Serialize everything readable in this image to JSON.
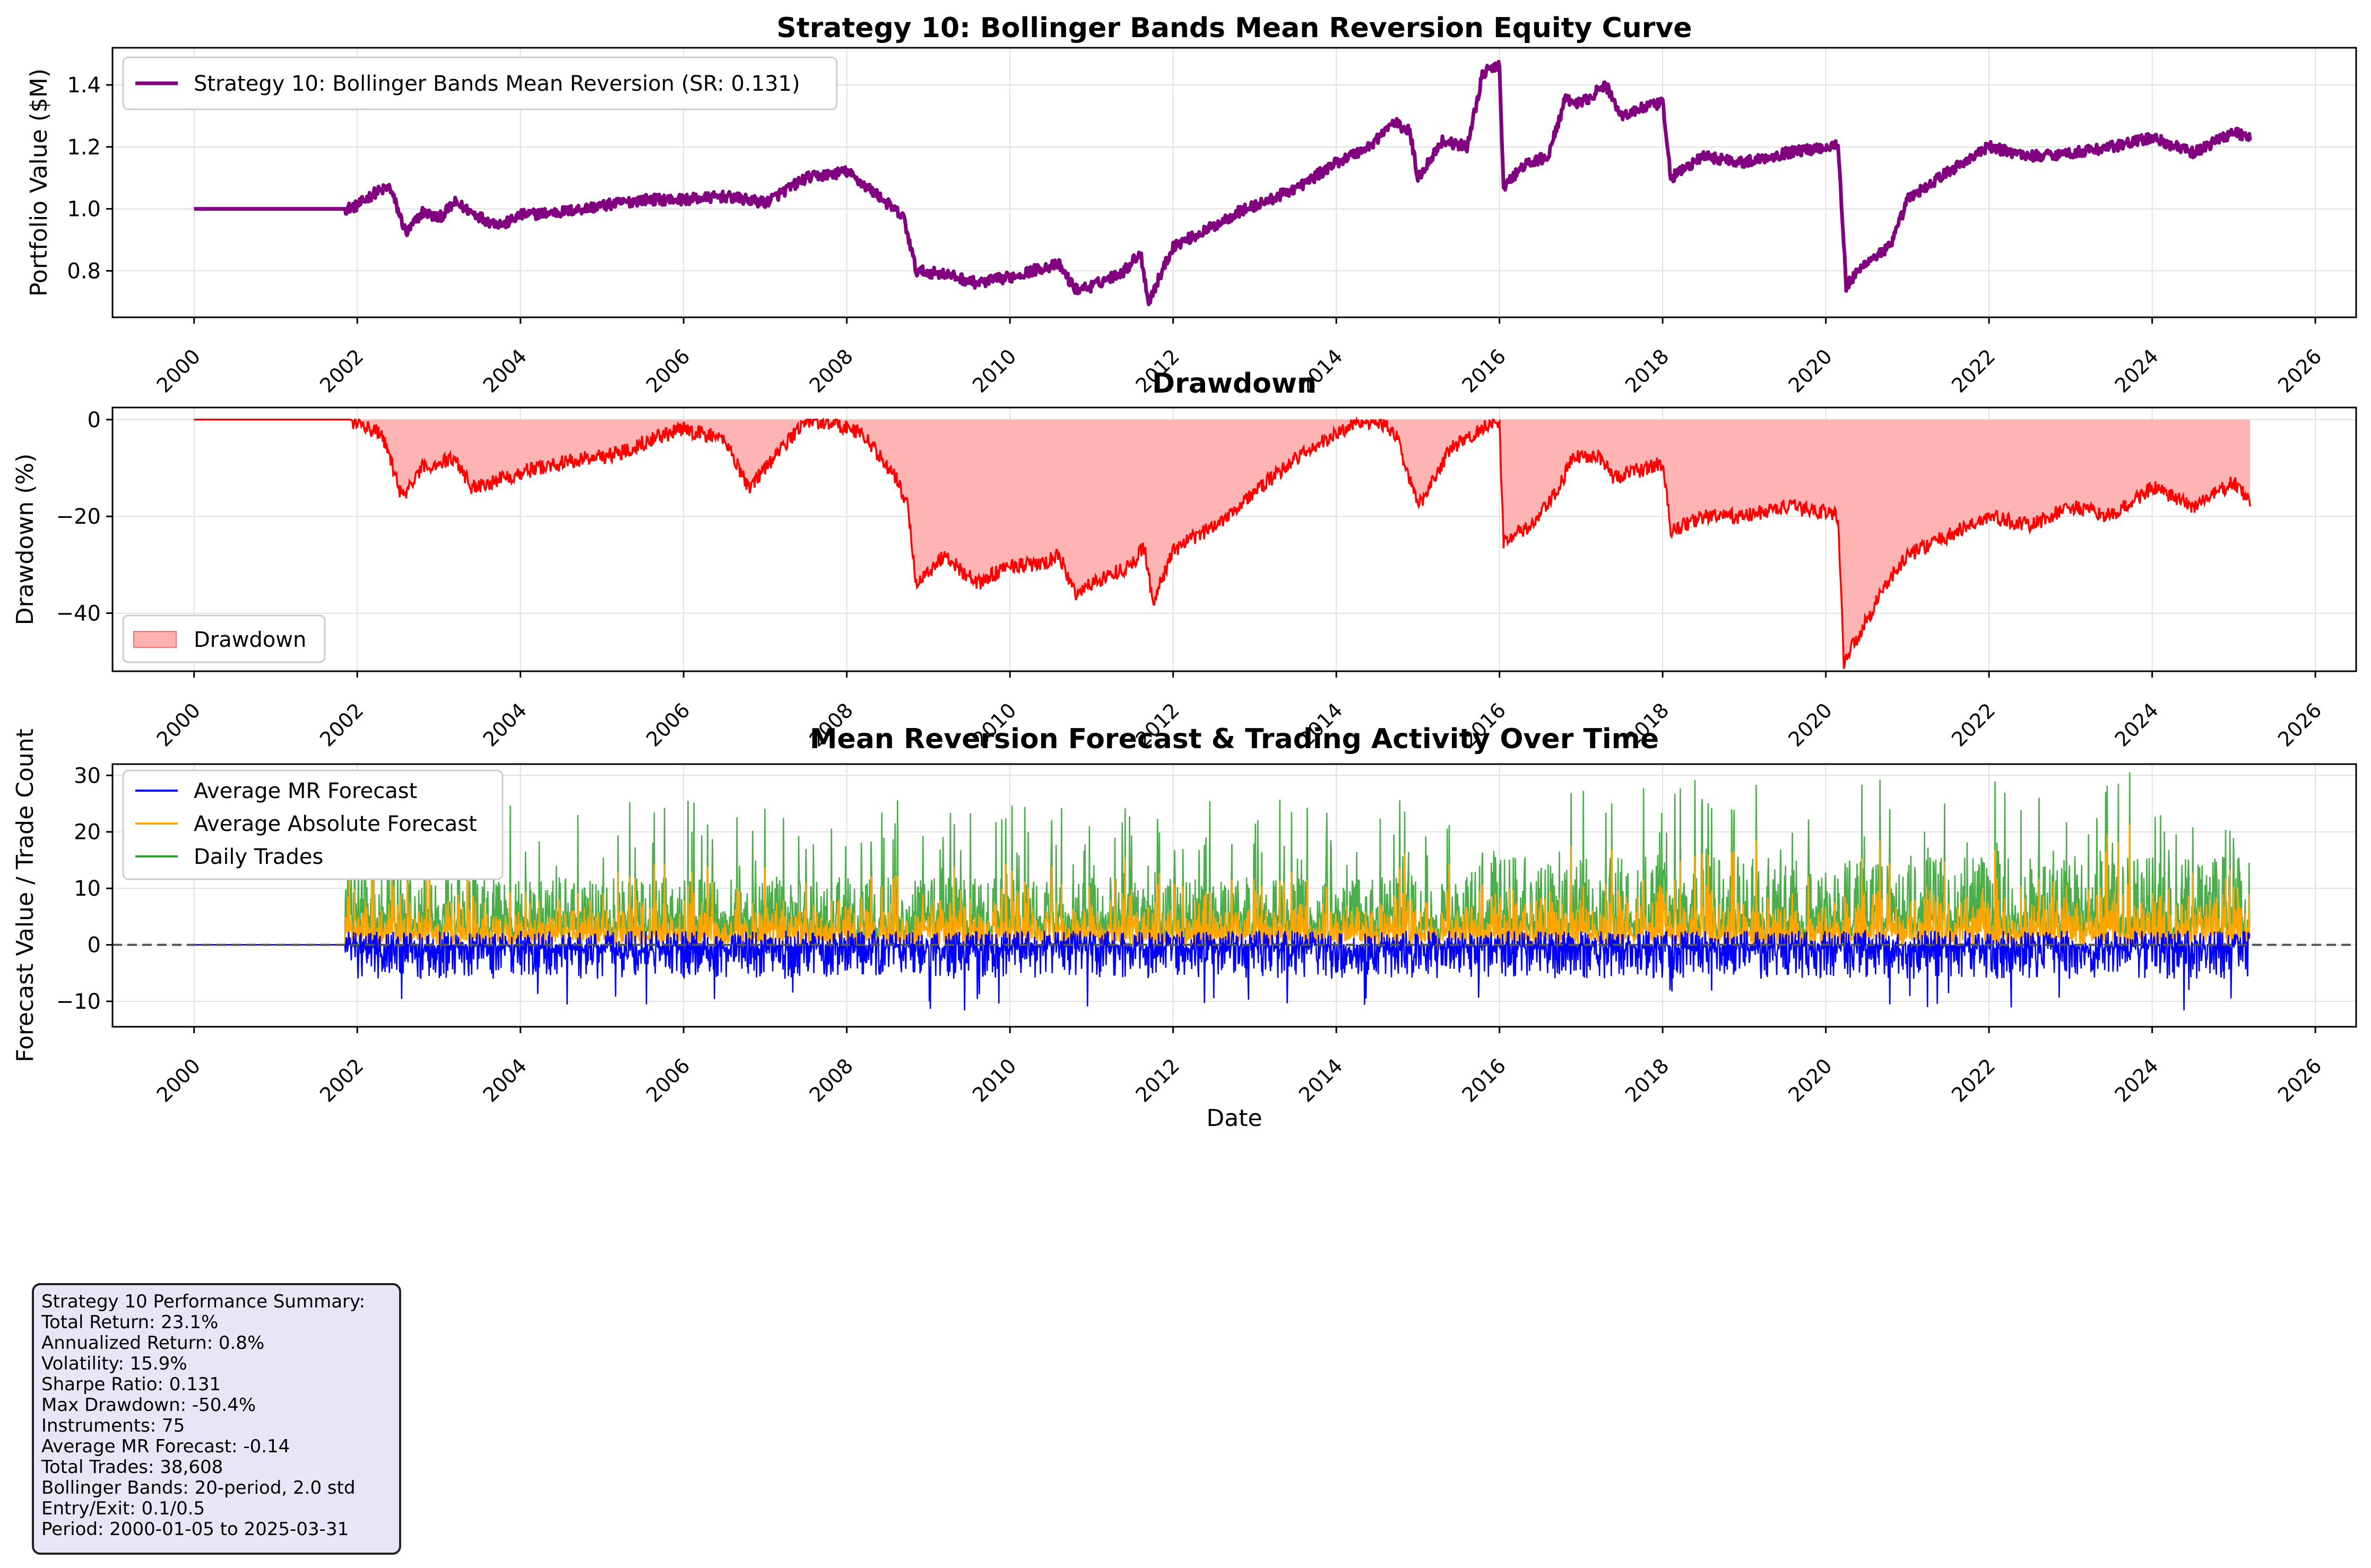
{
  "chart_data": [
    {
      "type": "line",
      "title": "Strategy 10: Bollinger Bands Mean Reversion Equity Curve",
      "xlabel": "",
      "ylabel": "Portfolio Value ($M)",
      "xlim": [
        1999.0,
        2026.5
      ],
      "ylim": [
        0.65,
        1.52
      ],
      "yticks": [
        0.8,
        1.0,
        1.2,
        1.4
      ],
      "xticks": [
        2000,
        2002,
        2004,
        2006,
        2008,
        2010,
        2012,
        2014,
        2016,
        2018,
        2020,
        2022,
        2024,
        2026
      ],
      "grid": true,
      "legend": "top-left",
      "series": [
        {
          "name": "Strategy 10: Bollinger Bands Mean Reversion (SR: 0.131)",
          "color": "#800080",
          "x": [
            2000.0,
            2001.85,
            2002.0,
            2002.2,
            2002.4,
            2002.6,
            2002.8,
            2003.0,
            2003.2,
            2003.4,
            2003.6,
            2003.8,
            2004.0,
            2004.5,
            2005.0,
            2005.5,
            2006.0,
            2006.5,
            2007.0,
            2007.5,
            2008.0,
            2008.4,
            2008.7,
            2008.85,
            2009.2,
            2009.6,
            2010.0,
            2010.4,
            2010.6,
            2010.8,
            2011.0,
            2011.4,
            2011.6,
            2011.7,
            2012.0,
            2012.4,
            2012.8,
            2013.2,
            2013.6,
            2014.0,
            2014.4,
            2014.7,
            2014.9,
            2015.0,
            2015.3,
            2015.6,
            2015.8,
            2016.0,
            2016.05,
            2016.3,
            2016.6,
            2016.8,
            2017.0,
            2017.3,
            2017.5,
            2017.8,
            2018.0,
            2018.1,
            2018.5,
            2019.0,
            2019.5,
            2020.0,
            2020.15,
            2020.25,
            2020.5,
            2020.8,
            2021.0,
            2021.5,
            2022.0,
            2022.5,
            2023.0,
            2023.5,
            2024.0,
            2024.5,
            2025.0,
            2025.2
          ],
          "values": [
            1.0,
            1.0,
            1.01,
            1.05,
            1.07,
            0.92,
            0.99,
            0.97,
            1.02,
            0.99,
            0.96,
            0.95,
            0.98,
            0.99,
            1.01,
            1.03,
            1.03,
            1.04,
            1.02,
            1.1,
            1.12,
            1.04,
            0.97,
            0.8,
            0.79,
            0.76,
            0.78,
            0.81,
            0.82,
            0.74,
            0.75,
            0.8,
            0.86,
            0.7,
            0.88,
            0.93,
            0.99,
            1.03,
            1.08,
            1.15,
            1.2,
            1.28,
            1.25,
            1.1,
            1.22,
            1.2,
            1.44,
            1.46,
            1.07,
            1.14,
            1.17,
            1.35,
            1.34,
            1.4,
            1.3,
            1.33,
            1.34,
            1.1,
            1.17,
            1.15,
            1.18,
            1.2,
            1.21,
            0.75,
            0.83,
            0.88,
            1.03,
            1.12,
            1.2,
            1.17,
            1.18,
            1.2,
            1.23,
            1.18,
            1.25,
            1.23
          ]
        }
      ]
    },
    {
      "type": "area",
      "title": "Drawdown",
      "xlabel": "",
      "ylabel": "Drawdown (%)",
      "xlim": [
        1999.0,
        2026.5
      ],
      "ylim": [
        -52,
        2.5
      ],
      "yticks": [
        0,
        -20,
        -40
      ],
      "xticks": [
        2000,
        2002,
        2004,
        2006,
        2008,
        2010,
        2012,
        2014,
        2016,
        2018,
        2020,
        2022,
        2024,
        2026
      ],
      "grid": true,
      "legend": "bottom-left",
      "series": [
        {
          "name": "Drawdown",
          "color": "#ff0000",
          "fill": "#ffb0b0",
          "x": [
            2000.0,
            2001.9,
            2002.3,
            2002.55,
            2002.8,
            2003.2,
            2003.4,
            2003.8,
            2004.2,
            2004.8,
            2005.2,
            2005.6,
            2006.0,
            2006.5,
            2006.8,
            2007.2,
            2007.5,
            2007.9,
            2008.2,
            2008.6,
            2008.75,
            2008.85,
            2009.2,
            2009.6,
            2010.0,
            2010.4,
            2010.6,
            2010.8,
            2011.1,
            2011.5,
            2011.65,
            2011.75,
            2012.0,
            2012.5,
            2013.0,
            2013.5,
            2014.0,
            2014.3,
            2014.6,
            2014.75,
            2015.0,
            2015.4,
            2015.7,
            2015.9,
            2016.0,
            2016.05,
            2016.4,
            2016.7,
            2016.9,
            2017.2,
            2017.4,
            2017.8,
            2018.0,
            2018.1,
            2018.5,
            2019.0,
            2019.5,
            2020.0,
            2020.15,
            2020.22,
            2020.45,
            2020.7,
            2021.0,
            2021.5,
            2022.0,
            2022.5,
            2023.0,
            2023.5,
            2024.0,
            2024.5,
            2025.0,
            2025.2
          ],
          "values": [
            0,
            0,
            -3,
            -16,
            -10,
            -8,
            -14,
            -12,
            -10,
            -8,
            -7,
            -4,
            -2,
            -4,
            -14,
            -6,
            0,
            -1,
            -3,
            -12,
            -18,
            -34,
            -28,
            -34,
            -30,
            -30,
            -28,
            -36,
            -33,
            -30,
            -26,
            -38,
            -27,
            -22,
            -15,
            -8,
            -3,
            0,
            -1,
            -4,
            -18,
            -6,
            -3,
            0,
            -2,
            -25,
            -22,
            -15,
            -8,
            -7,
            -12,
            -10,
            -9,
            -23,
            -20,
            -20,
            -18,
            -19,
            -20,
            -50,
            -43,
            -35,
            -28,
            -24,
            -20,
            -22,
            -18,
            -20,
            -14,
            -18,
            -13,
            -17
          ]
        }
      ]
    },
    {
      "type": "line",
      "title": "Mean Reversion Forecast & Trading Activity Over Time",
      "xlabel": "Date",
      "ylabel": "Forecast Value / Trade Count",
      "xlim": [
        1999.0,
        2026.5
      ],
      "ylim": [
        -14.5,
        32
      ],
      "yticks": [
        -10,
        0,
        10,
        20,
        30
      ],
      "xticks": [
        2000,
        2002,
        2004,
        2006,
        2008,
        2010,
        2012,
        2014,
        2016,
        2018,
        2020,
        2022,
        2024,
        2026
      ],
      "grid": true,
      "legend": "top-left",
      "reference_line": 0,
      "active_period": [
        2001.85,
        2025.2
      ],
      "series": [
        {
          "name": "Average MR Forecast",
          "color": "#0000ff",
          "typical_range": [
            -12,
            3
          ]
        },
        {
          "name": "Average Absolute Forecast",
          "color": "#ffa500",
          "typical_range": [
            0,
            20
          ]
        },
        {
          "name": "Daily Trades",
          "color": "#2ca02c",
          "typical_range": [
            0,
            30
          ]
        }
      ]
    }
  ],
  "summary": {
    "lines": [
      "Strategy 10 Performance Summary:",
      "Total Return: 23.1%",
      "Annualized Return: 0.8%",
      "Volatility: 15.9%",
      "Sharpe Ratio: 0.131",
      "Max Drawdown: -50.4%",
      "Instruments: 75",
      "Average MR Forecast: -0.14",
      "Total Trades: 38,608",
      "Bollinger Bands: 20-period, 2.0 std",
      "Entry/Exit: 0.1/0.5",
      "Period: 2000-01-05 to 2025-03-31"
    ]
  }
}
